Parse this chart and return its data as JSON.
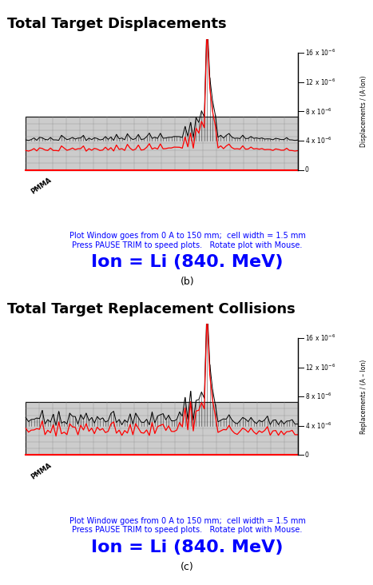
{
  "title1": "Total Target Displacements",
  "title2": "Total Target Replacement Collisions",
  "ylabel1": "Displacements / (A·Ion)",
  "ylabel2": "Replacements / (A – Ion)",
  "ion_label": "Ion = Li (840. MeV)",
  "subtitle_line1": "Plot Window goes from 0 A to 150 mm;  cell width = 1.5 mm",
  "subtitle_line2": "Press PAUSE TRIM to speed plots.   Rotate plot with Mouse.",
  "label_b": "(b)",
  "label_c": "(c)",
  "pmma_label": "PMMA",
  "background_color": "#ffffff",
  "title_fontsize": 13,
  "ion_fontsize": 16,
  "subtitle_fontsize": 7,
  "floor_color": "#cccccc",
  "grid_color": "#aaaaaa"
}
